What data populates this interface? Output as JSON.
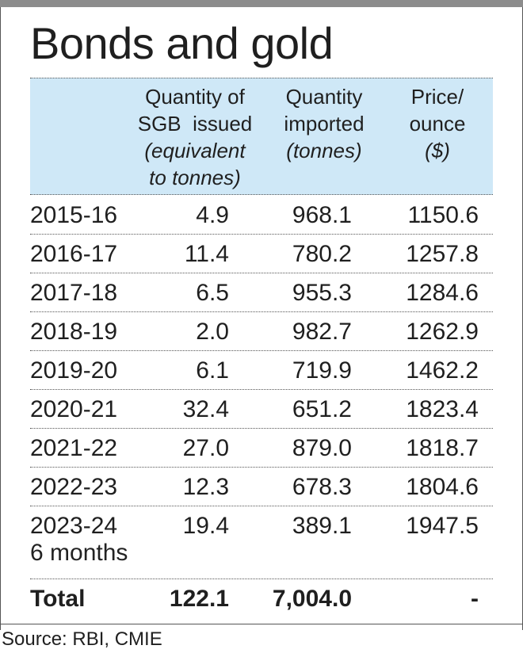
{
  "title": "Bonds and gold",
  "headers": {
    "quantity_sgb": {
      "line1": "Quantity of",
      "line2": "SGB  issued",
      "line3": "(equivalent",
      "line4": "to tonnes)"
    },
    "imported": {
      "line1": "Quantity",
      "line2": "imported",
      "line3": "(tonnes)"
    },
    "price": {
      "line1": "Price/",
      "line2": "ounce",
      "line3": "($)"
    }
  },
  "rows": [
    {
      "year": "2015-16",
      "sgb": "4.9",
      "imported": "968.1",
      "price": "1150.6"
    },
    {
      "year": "2016-17",
      "sgb": "11.4",
      "imported": "780.2",
      "price": "1257.8"
    },
    {
      "year": "2017-18",
      "sgb": "6.5",
      "imported": "955.3",
      "price": "1284.6"
    },
    {
      "year": "2018-19",
      "sgb": "2.0",
      "imported": "982.7",
      "price": "1262.9"
    },
    {
      "year": "2019-20",
      "sgb": "6.1",
      "imported": "719.9",
      "price": "1462.2"
    },
    {
      "year": "2020-21",
      "sgb": "32.4",
      "imported": "651.2",
      "price": "1823.4"
    },
    {
      "year": "2021-22",
      "sgb": "27.0",
      "imported": "879.0",
      "price": "1818.7"
    },
    {
      "year": "2022-23",
      "sgb": "12.3",
      "imported": "678.3",
      "price": "1804.6"
    },
    {
      "year": "2023-24",
      "sub": "6 months",
      "sgb": "19.4",
      "imported": "389.1",
      "price": "1947.5"
    }
  ],
  "total": {
    "label": "Total",
    "sgb": "122.1",
    "imported": "7,004.0",
    "price": "-"
  },
  "source": "Source: RBI, CMIE",
  "colors": {
    "header_band": "#cfe8f7",
    "top_bar": "#8c8c8c",
    "text": "#1f1f1f"
  },
  "chart_data": {
    "type": "table",
    "title": "Bonds and gold",
    "columns": [
      "",
      "Quantity of SGB issued (equivalent to tonnes)",
      "Quantity imported (tonnes)",
      "Price/ ounce ($)"
    ],
    "categories": [
      "2015-16",
      "2016-17",
      "2017-18",
      "2018-19",
      "2019-20",
      "2020-21",
      "2021-22",
      "2022-23",
      "2023-24 6 months"
    ],
    "series": [
      {
        "name": "Quantity of SGB issued (equivalent to tonnes)",
        "values": [
          4.9,
          11.4,
          6.5,
          2.0,
          6.1,
          32.4,
          27.0,
          12.3,
          19.4
        ]
      },
      {
        "name": "Quantity imported (tonnes)",
        "values": [
          968.1,
          780.2,
          955.3,
          982.7,
          719.9,
          651.2,
          879.0,
          678.3,
          389.1
        ]
      },
      {
        "name": "Price/ ounce ($)",
        "values": [
          1150.6,
          1257.8,
          1284.6,
          1262.9,
          1462.2,
          1823.4,
          1818.7,
          1804.6,
          1947.5
        ]
      }
    ],
    "totals": {
      "sgb": 122.1,
      "imported": 7004.0,
      "price": "-"
    },
    "source": "Source: RBI, CMIE"
  }
}
